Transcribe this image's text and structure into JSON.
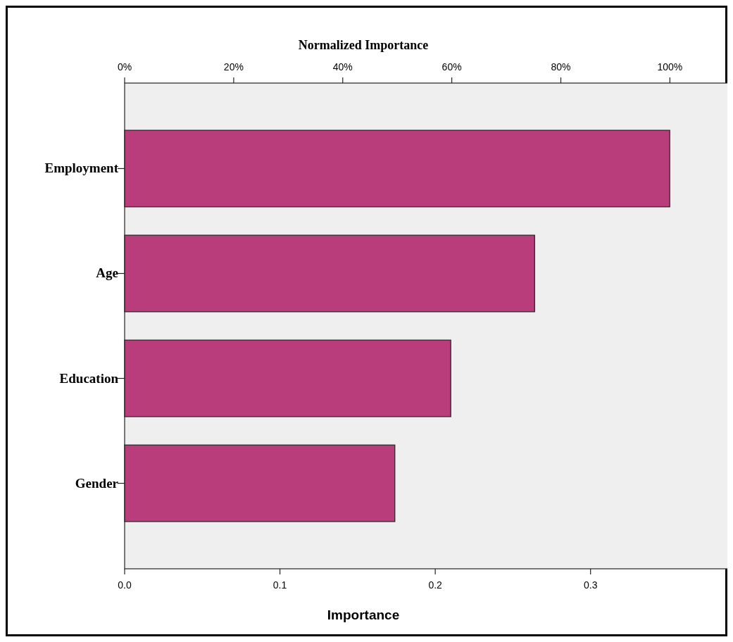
{
  "chart_data": {
    "type": "bar",
    "orientation": "horizontal",
    "x2label": "Normalized Importance",
    "xlabel": "Importance",
    "categories": [
      "Employment",
      "Age",
      "Education",
      "Gender"
    ],
    "values": [
      0.351,
      0.264,
      0.21,
      0.174
    ],
    "color": "#b83d7a",
    "xlim": [
      0,
      0.389
    ],
    "xticks": [
      {
        "value": 0,
        "label": "0.0"
      },
      0.1,
      0.2,
      0.3
    ],
    "x2lim": [
      0,
      110.8
    ],
    "x2ticks": [
      {
        "value": 0,
        "label": "0%"
      },
      {
        "value": 20,
        "label": "20%"
      },
      {
        "value": 40,
        "label": "40%"
      },
      {
        "value": 60,
        "label": "60%"
      },
      {
        "value": 80,
        "label": "80%"
      },
      {
        "value": 100,
        "label": "100%"
      }
    ],
    "grid": false
  }
}
